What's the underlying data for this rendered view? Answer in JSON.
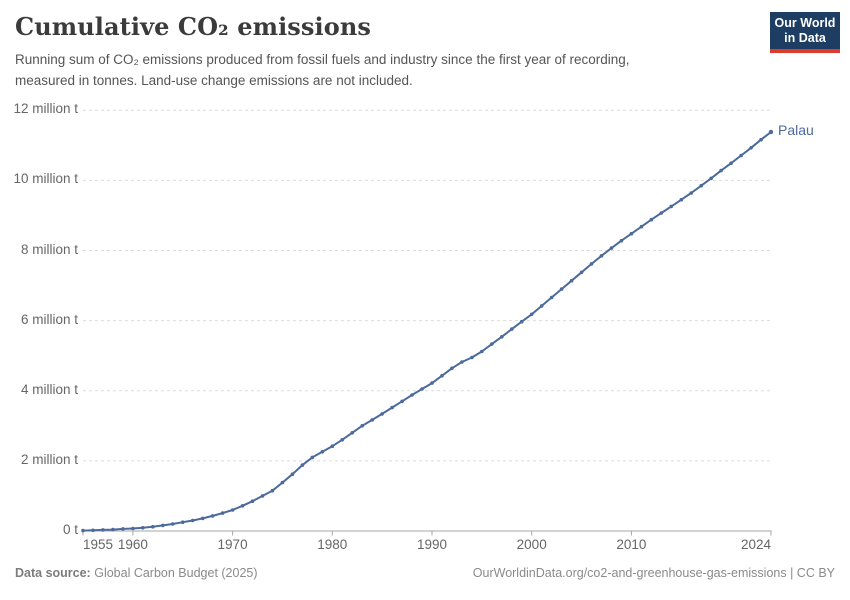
{
  "header": {
    "title": "Cumulative CO₂ emissions",
    "subtitle_line1": "Running sum of CO₂ emissions produced from fossil fuels and industry since the first year of recording,",
    "subtitle_line2": "measured in tonnes. Land-use change emissions are not included.",
    "logo": {
      "line1": "Our World",
      "line2": "in Data",
      "bg_color": "#1d3d63",
      "accent_color": "#dc3b2e"
    }
  },
  "chart_data": {
    "type": "line",
    "title": "Cumulative CO₂ emissions",
    "entity": "Palau",
    "unit": "tonnes",
    "values_unit": "million tonnes",
    "line_color": "#4C6A9C",
    "grid": "horizontal-dashed",
    "legend_position": "end-of-line",
    "xlim": [
      1955,
      2024
    ],
    "ylim_million_t": [
      0,
      12
    ],
    "yticks": [
      {
        "value": 0,
        "label": "0 t"
      },
      {
        "value": 2,
        "label": "2 million t"
      },
      {
        "value": 4,
        "label": "4 million t"
      },
      {
        "value": 6,
        "label": "6 million t"
      },
      {
        "value": 8,
        "label": "8 million t"
      },
      {
        "value": 10,
        "label": "10 million t"
      },
      {
        "value": 12,
        "label": "12 million t"
      }
    ],
    "xticks": [
      {
        "value": 1955,
        "label": "1955",
        "align": "left"
      },
      {
        "value": 1960,
        "label": "1960",
        "align": "center"
      },
      {
        "value": 1970,
        "label": "1970",
        "align": "center"
      },
      {
        "value": 1980,
        "label": "1980",
        "align": "center"
      },
      {
        "value": 1990,
        "label": "1990",
        "align": "center"
      },
      {
        "value": 2000,
        "label": "2000",
        "align": "center"
      },
      {
        "value": 2010,
        "label": "2010",
        "align": "center"
      },
      {
        "value": 2024,
        "label": "2024",
        "align": "right"
      }
    ],
    "x": [
      1955,
      1956,
      1957,
      1958,
      1959,
      1960,
      1961,
      1962,
      1963,
      1964,
      1965,
      1966,
      1967,
      1968,
      1969,
      1970,
      1971,
      1972,
      1973,
      1974,
      1975,
      1976,
      1977,
      1978,
      1979,
      1980,
      1981,
      1982,
      1983,
      1984,
      1985,
      1986,
      1987,
      1988,
      1989,
      1990,
      1991,
      1992,
      1993,
      1994,
      1995,
      1996,
      1997,
      1998,
      1999,
      2000,
      2001,
      2002,
      2003,
      2004,
      2005,
      2006,
      2007,
      2008,
      2009,
      2010,
      2011,
      2012,
      2013,
      2014,
      2015,
      2016,
      2017,
      2018,
      2019,
      2020,
      2021,
      2022,
      2023,
      2024
    ],
    "values_million_t": [
      0.01,
      0.02,
      0.03,
      0.04,
      0.06,
      0.07,
      0.09,
      0.12,
      0.16,
      0.2,
      0.25,
      0.3,
      0.36,
      0.43,
      0.51,
      0.6,
      0.72,
      0.85,
      1.0,
      1.15,
      1.38,
      1.62,
      1.88,
      2.1,
      2.26,
      2.42,
      2.6,
      2.8,
      3.0,
      3.17,
      3.34,
      3.52,
      3.7,
      3.88,
      4.05,
      4.22,
      4.43,
      4.64,
      4.82,
      4.95,
      5.12,
      5.33,
      5.54,
      5.76,
      5.97,
      6.18,
      6.42,
      6.66,
      6.9,
      7.14,
      7.38,
      7.62,
      7.85,
      8.07,
      8.28,
      8.48,
      8.68,
      8.88,
      9.07,
      9.26,
      9.45,
      9.64,
      9.85,
      10.06,
      10.28,
      10.49,
      10.71,
      10.93,
      11.16,
      11.38
    ]
  },
  "footer": {
    "source_label": "Data source:",
    "source_value": "Global Carbon Budget (2025)",
    "link_text": "OurWorldinData.org/co2-and-greenhouse-gas-emissions | CC BY"
  }
}
